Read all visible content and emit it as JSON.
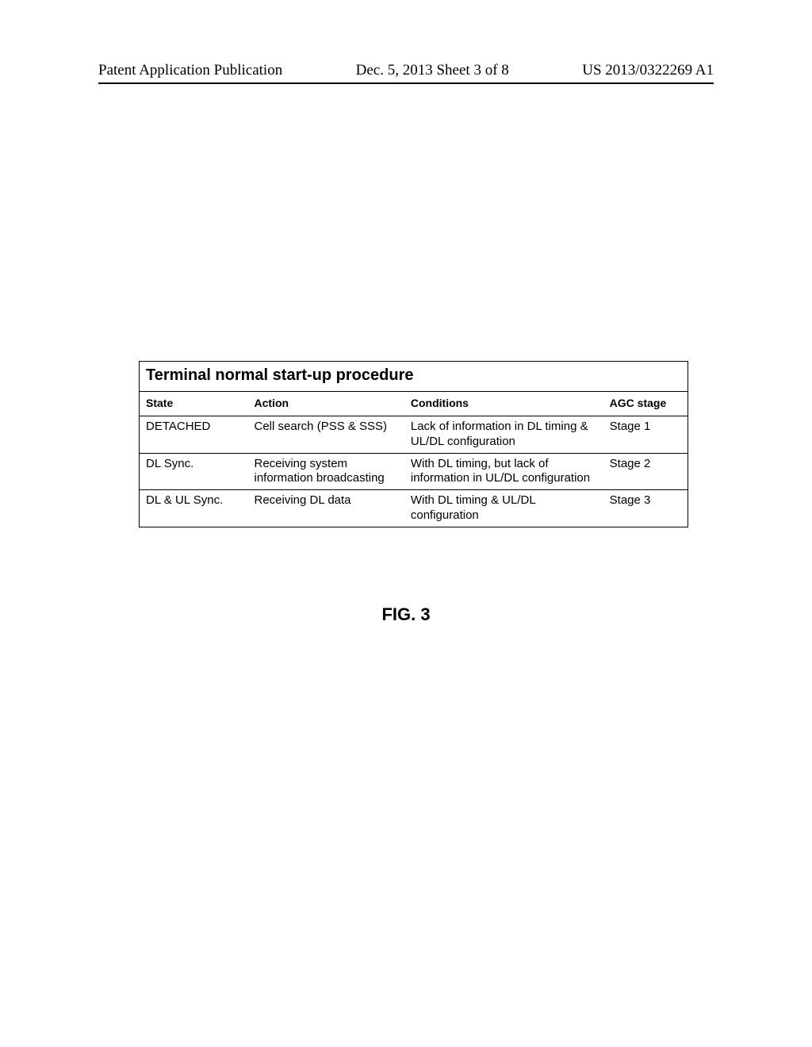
{
  "header": {
    "left": "Patent Application Publication",
    "center": "Dec. 5, 2013   Sheet 3 of 8",
    "right": "US 2013/0322269 A1"
  },
  "table": {
    "title": "Terminal normal start-up procedure",
    "columns": [
      "State",
      "Action",
      "Conditions",
      "AGC stage"
    ],
    "rows": [
      {
        "state": "DETACHED",
        "action": "Cell search (PSS & SSS)",
        "conditions": "Lack of information in DL timing & UL/DL configuration",
        "agc": "Stage 1"
      },
      {
        "state": "DL Sync.",
        "action": "Receiving system information broadcasting",
        "conditions": "With DL timing, but lack of information in UL/DL configuration",
        "agc": "Stage 2"
      },
      {
        "state": "DL & UL Sync.",
        "action": "Receiving DL data",
        "conditions": "With DL timing & UL/DL configuration",
        "agc": "Stage 3"
      }
    ]
  },
  "figure_label": "FIG. 3"
}
